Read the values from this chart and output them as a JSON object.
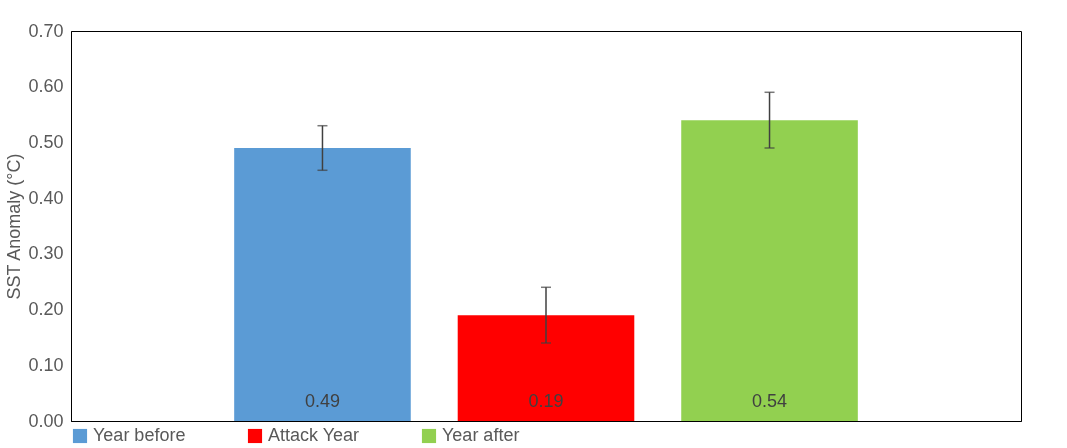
{
  "chart_data": {
    "type": "bar",
    "ylabel": "SST Anomaly (°C)",
    "categories": [
      null
    ],
    "series": [
      {
        "name": "Year before",
        "color": "#5b9bd5",
        "values": [
          0.49
        ],
        "errors": [
          0.04
        ]
      },
      {
        "name": "Attack Year",
        "color": "#ff0000",
        "values": [
          0.19
        ],
        "errors": [
          0.05
        ]
      },
      {
        "name": "Year after",
        "color": "#92d050",
        "values": [
          0.54
        ],
        "errors": [
          0.05
        ]
      }
    ],
    "ylim": [
      0,
      0.7
    ],
    "yticks": [
      {
        "value": 0,
        "label": "0.00"
      },
      {
        "value": 0.1,
        "label": "0.10"
      },
      {
        "value": 0.2,
        "label": "0.20"
      },
      {
        "value": 0.3,
        "label": "0.30"
      },
      {
        "value": 0.4,
        "label": "0.40"
      },
      {
        "value": 0.5,
        "label": "0.50"
      },
      {
        "value": 0.6,
        "label": "0.60"
      },
      {
        "value": 0.7,
        "label": "0.70"
      }
    ],
    "data_labels": true,
    "legend": "bottom",
    "grid": false
  }
}
